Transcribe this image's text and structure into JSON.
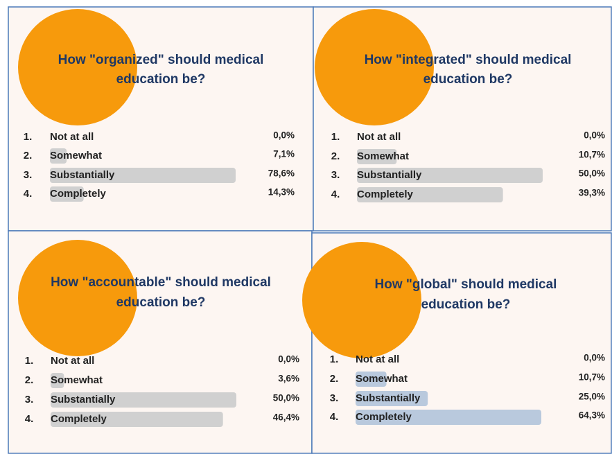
{
  "chart_data": [
    {
      "type": "bar",
      "title": [
        "How \"organized\" should medical",
        "education be?"
      ],
      "item_numbers": [
        "1.",
        "2.",
        "3.",
        "4."
      ],
      "categories": [
        "Not at all",
        "Somewhat",
        "Substantially",
        "Completely"
      ],
      "values": [
        0.0,
        7.1,
        78.6,
        14.3
      ],
      "value_labels": [
        "0,0%",
        "7,1%",
        "78,6%",
        "14,3%"
      ],
      "color": "#d0d0d0"
    },
    {
      "type": "bar",
      "title": [
        "How \"integrated\" should medical",
        "education be?"
      ],
      "item_numbers": [
        "1.",
        "2.",
        "3.",
        "4."
      ],
      "categories": [
        "Not at all",
        "Somewhat",
        "Substantially",
        "Completely"
      ],
      "values": [
        0.0,
        10.7,
        50.0,
        39.3
      ],
      "value_labels": [
        "0,0%",
        "10,7%",
        "50,0%",
        "39,3%"
      ],
      "color": "#d0d0d0"
    },
    {
      "type": "bar",
      "title": [
        "How \"accountable\" should medical",
        "education be?"
      ],
      "item_numbers": [
        "1.",
        "2.",
        "3.",
        "4."
      ],
      "categories": [
        "Not at all",
        "Somewhat",
        "Substantially",
        "Completely"
      ],
      "values": [
        0.0,
        3.6,
        50.0,
        46.4
      ],
      "value_labels": [
        "0,0%",
        "3,6%",
        "50,0%",
        "46,4%"
      ],
      "color": "#d0d0d0"
    },
    {
      "type": "bar",
      "title": [
        "How \"global\"  should medical",
        "education be?"
      ],
      "item_numbers": [
        "1.",
        "2.",
        "3.",
        "4."
      ],
      "categories": [
        "Not at all",
        "Somewhat",
        "Substantially",
        "Completely"
      ],
      "values": [
        0.0,
        10.7,
        25.0,
        64.3
      ],
      "value_labels": [
        "0,0%",
        "10,7%",
        "25,0%",
        "64,3%"
      ],
      "color": "#b9c9dd"
    }
  ]
}
